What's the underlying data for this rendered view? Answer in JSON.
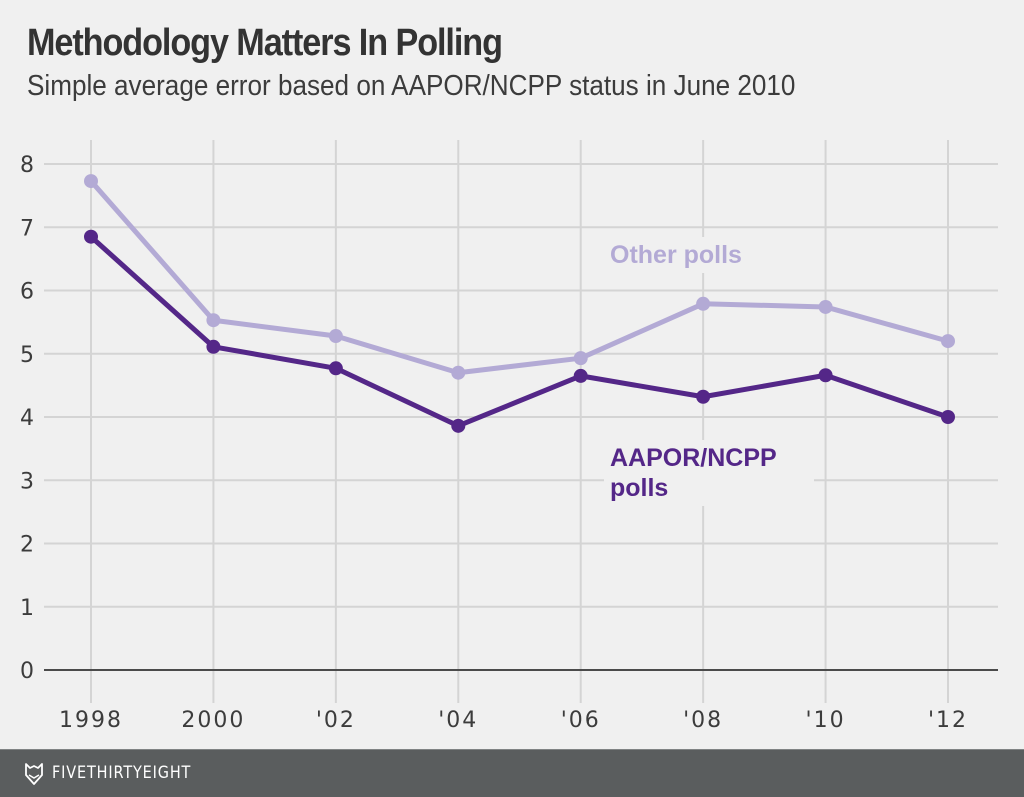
{
  "header": {
    "title": "Methodology Matters In Polling",
    "subtitle": "Simple average error based on AAPOR/NCPP status in June 2010"
  },
  "footer": {
    "brand": "FIVETHIRTYEIGHT",
    "logo_icon": "fox-head-icon"
  },
  "colors": {
    "background": "#f0f0f0",
    "other_polls": "#b3aad5",
    "aapor_polls": "#542788",
    "grid": "#d4d4d4",
    "baseline": "#4a4a4a",
    "footer": "#5a5d5e"
  },
  "chart_data": {
    "type": "line",
    "title": "Methodology Matters In Polling",
    "subtitle": "Simple average error based on AAPOR/NCPP status in June 2010",
    "xlabel": "",
    "ylabel": "",
    "x": [
      1998,
      2000,
      2002,
      2004,
      2006,
      2008,
      2010,
      2012
    ],
    "x_tick_labels": [
      "1998",
      "2000",
      "'02",
      "'04",
      "'06",
      "'08",
      "'10",
      "'12"
    ],
    "y_ticks": [
      0,
      1,
      2,
      3,
      4,
      5,
      6,
      7,
      8
    ],
    "y_tick_labels": [
      "0",
      "1",
      "2",
      "3",
      "4",
      "5",
      "6",
      "7",
      "8"
    ],
    "ylim": [
      0,
      8
    ],
    "xlim": [
      1998,
      2012
    ],
    "grid": true,
    "legend": "inline-labels",
    "series": [
      {
        "name": "Other polls",
        "label_lines": [
          "Other polls"
        ],
        "color": "#b3aad5",
        "values": [
          7.73,
          5.53,
          5.28,
          4.7,
          4.93,
          5.79,
          5.74,
          5.2
        ]
      },
      {
        "name": "AAPOR/NCPP polls",
        "label_lines": [
          "AAPOR/NCPP",
          "polls"
        ],
        "color": "#542788",
        "values": [
          6.85,
          5.11,
          4.77,
          3.86,
          4.65,
          4.32,
          4.66,
          4.0
        ]
      }
    ]
  }
}
